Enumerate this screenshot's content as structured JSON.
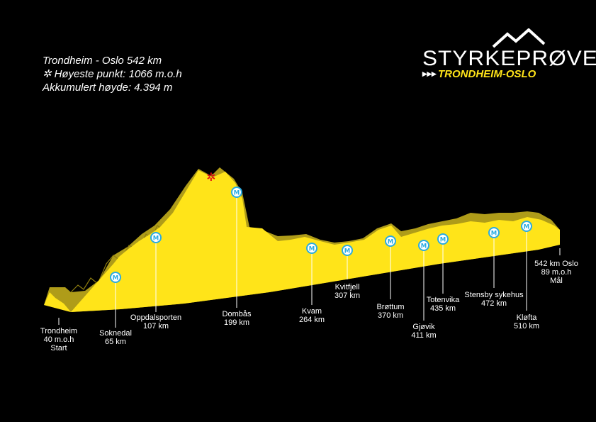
{
  "info": {
    "route": "Trondheim - Oslo 542 km",
    "highest": "Høyeste punkt: 1066 m.o.h",
    "ascent": "Akkumulert høyde: 4.394 m"
  },
  "logo": {
    "name": "STYRKEPRØVEN",
    "arrows": "▸▸▸",
    "subtitle": "TRONDHEIM-OSLO"
  },
  "colors": {
    "profile_top": "#ffe419",
    "profile_side": "#b8a41a",
    "badge": "#29abe2",
    "highest_mark": "#e30613"
  },
  "marker_letter": "M",
  "locations": [
    {
      "id": "trondheim",
      "lines": [
        "Trondheim",
        "40 m.o.h",
        "Start"
      ]
    },
    {
      "id": "soknedal",
      "lines": [
        "Soknedal",
        "65 km"
      ]
    },
    {
      "id": "oppdalsporten",
      "lines": [
        "Oppdalsporten",
        "107 km"
      ]
    },
    {
      "id": "dombas",
      "lines": [
        "Dombås",
        "199 km"
      ]
    },
    {
      "id": "kvam",
      "lines": [
        "Kvam",
        "264 km"
      ]
    },
    {
      "id": "kvitfjell",
      "lines": [
        "Kvitfjell",
        "307 km"
      ]
    },
    {
      "id": "brottum",
      "lines": [
        "Brøttum",
        "370 km"
      ]
    },
    {
      "id": "gjovik",
      "lines": [
        "Gjøvik",
        "411 km"
      ]
    },
    {
      "id": "totenvika",
      "lines": [
        "Totenvika",
        "435 km"
      ]
    },
    {
      "id": "stensby",
      "lines": [
        "Stensby sykehus",
        "472 km"
      ]
    },
    {
      "id": "klofta",
      "lines": [
        "Kløfta",
        "510 km"
      ]
    },
    {
      "id": "oslo",
      "lines": [
        "542 km Oslo",
        "89 m.o.h",
        "Mål"
      ]
    }
  ]
}
